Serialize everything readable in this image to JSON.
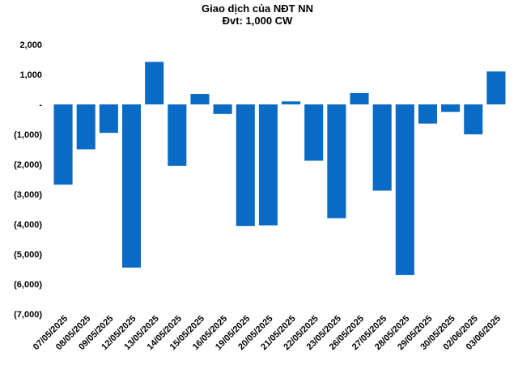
{
  "chart_data": {
    "type": "bar",
    "title": "Giao dịch của NĐT NN",
    "subtitle": "Đvt: 1,000 CW",
    "categories": [
      "07/05/2025",
      "08/05/2025",
      "09/05/2025",
      "12/05/2025",
      "13/05/2025",
      "14/05/2025",
      "15/05/2025",
      "16/05/2025",
      "19/05/2025",
      "20/05/2025",
      "21/05/2025",
      "22/05/2025",
      "23/05/2025",
      "26/05/2025",
      "27/05/2025",
      "28/05/2025",
      "29/05/2025",
      "30/05/2025",
      "02/06/2025",
      "03/06/2025"
    ],
    "values": [
      -2680,
      -1500,
      -950,
      -5450,
      1420,
      -2050,
      350,
      -320,
      -4060,
      -4040,
      100,
      -1880,
      -3800,
      380,
      -2880,
      -5700,
      -640,
      -250,
      -1000,
      1100
    ],
    "ylim": [
      -7000,
      2000
    ],
    "yticks": [
      2000,
      1000,
      0,
      -1000,
      -2000,
      -3000,
      -4000,
      -5000,
      -6000,
      -7000
    ],
    "ytick_labels": [
      "2,000",
      "1,000",
      "-",
      "(1,000)",
      "(2,000)",
      "(3,000)",
      "(4,000)",
      "(5,000)",
      "(6,000)",
      "(7,000)"
    ],
    "bar_color": "#0a6bc4",
    "grid": false,
    "legend": "none"
  }
}
